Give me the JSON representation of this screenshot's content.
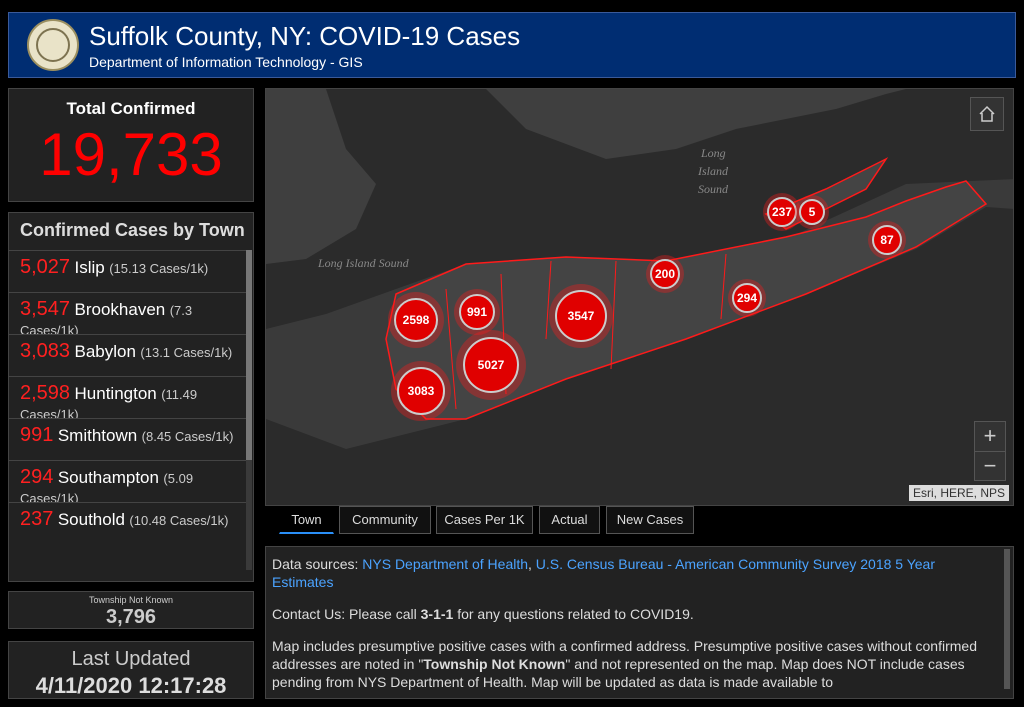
{
  "header": {
    "title": "Suffolk County, NY: COVID-19 Cases",
    "subtitle": "Department of Information Technology - GIS"
  },
  "total": {
    "label": "Total Confirmed",
    "value": "19,733"
  },
  "towns": {
    "title": "Confirmed Cases by Town",
    "items": [
      {
        "count": "5,027",
        "name": "Islip",
        "rate": "(15.13 Cases/1k)"
      },
      {
        "count": "3,547",
        "name": "Brookhaven",
        "rate": "(7.3 Cases/1k)"
      },
      {
        "count": "3,083",
        "name": "Babylon",
        "rate": "(13.1 Cases/1k)"
      },
      {
        "count": "2,598",
        "name": "Huntington",
        "rate": "(11.49 Cases/1k)"
      },
      {
        "count": "991",
        "name": "Smithtown",
        "rate": "(8.45 Cases/1k)"
      },
      {
        "count": "294",
        "name": "Southampton",
        "rate": "(5.09 Cases/1k)"
      },
      {
        "count": "237",
        "name": "Southold",
        "rate": "(10.48 Cases/1k)"
      }
    ]
  },
  "unknown": {
    "label": "Township Not Known",
    "value": "3,796"
  },
  "updated": {
    "label": "Last Updated",
    "value": "4/11/2020 12:17:28"
  },
  "map": {
    "place_labels": {
      "long_island_sound_1": "Long",
      "long_island_sound_2": "Island",
      "long_island_sound_3": "Sound",
      "long_island_sound_west": "Long Island Sound"
    },
    "clusters": [
      {
        "label": "2598"
      },
      {
        "label": "991"
      },
      {
        "label": "3547"
      },
      {
        "label": "5027"
      },
      {
        "label": "3083"
      },
      {
        "label": "200"
      },
      {
        "label": "294"
      },
      {
        "label": "237"
      },
      {
        "label": "5"
      },
      {
        "label": "87"
      }
    ],
    "zoom_in": "+",
    "zoom_out": "−",
    "attribution": "Esri, HERE, NPS"
  },
  "tabs": [
    {
      "label": "Town"
    },
    {
      "label": "Community"
    },
    {
      "label": "Cases Per 1K"
    },
    {
      "label": "Actual"
    },
    {
      "label": "New Cases"
    }
  ],
  "info": {
    "sources_prefix": "Data sources: ",
    "source_1": "NYS Department of Health",
    "source_sep": ", ",
    "source_2": "U.S. Census Bureau - American Community Survey 2018 5 Year Estimates",
    "contact_prefix": "Contact Us: Please call ",
    "contact_number": "3-1-1",
    "contact_suffix": " for any questions related to COVID19.",
    "note_1": "Map includes presumptive positive cases with a confirmed address. Presumptive positive cases without confirmed addresses are noted in \"",
    "note_bold": "Township Not Known",
    "note_2": "\" and not represented on the map. Map does NOT include cases pending from NYS Department of Health. Map will be updated as data is made available to"
  },
  "colors": {
    "accent_red": "#ff0000",
    "header_blue": "#002d72",
    "link_blue": "#4ba3ff"
  }
}
